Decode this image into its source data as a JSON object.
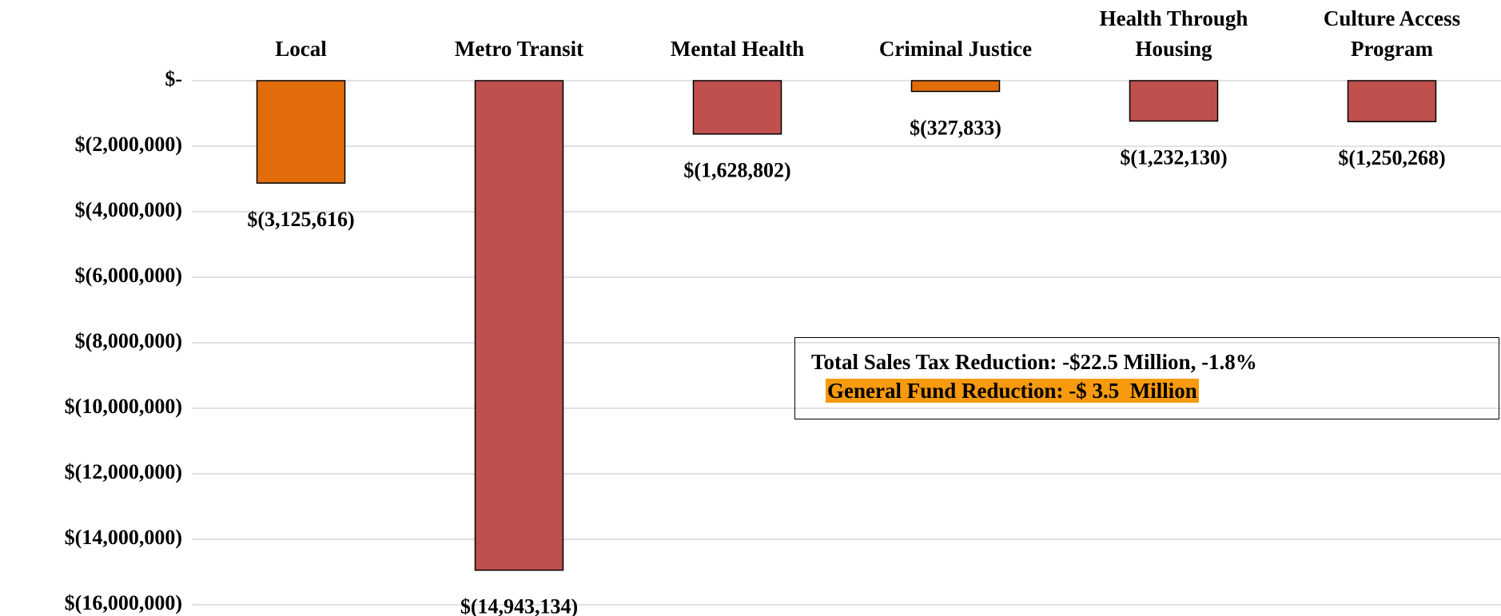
{
  "chart_data": {
    "type": "bar",
    "categories": [
      "Local",
      "Metro Transit",
      "Mental Health",
      "Criminal Justice",
      "Health Through Housing",
      "Culture Access Program"
    ],
    "values": [
      -3125616,
      -14943134,
      -1628802,
      -327833,
      -1232130,
      -1250268
    ],
    "value_labels": [
      "$(3,125,616)",
      "$(14,943,134)",
      "$(1,628,802)",
      "$(327,833)",
      "$(1,232,130)",
      "$(1,250,268)"
    ],
    "colors": [
      "#e36c0a",
      "#c0504d",
      "#c0504d",
      "#e36c0a",
      "#c0504d",
      "#c0504d"
    ],
    "ylim": [
      -16000000,
      0
    ],
    "yticks": [
      {
        "value": 0,
        "label": "$-"
      },
      {
        "value": -2000000,
        "label": "$(2,000,000)"
      },
      {
        "value": -4000000,
        "label": "$(4,000,000)"
      },
      {
        "value": -6000000,
        "label": "$(6,000,000)"
      },
      {
        "value": -8000000,
        "label": "$(8,000,000)"
      },
      {
        "value": -10000000,
        "label": "$(10,000,000)"
      },
      {
        "value": -12000000,
        "label": "$(12,000,000)"
      },
      {
        "value": -14000000,
        "label": "$(14,000,000)"
      },
      {
        "value": -16000000,
        "label": "$(16,000,000)"
      }
    ],
    "grid": true,
    "annotations": [
      "Total Sales Tax Reduction: -$22.5 Million, -1.8%",
      "General Fund Reduction: -$ 3.5  Million"
    ]
  }
}
